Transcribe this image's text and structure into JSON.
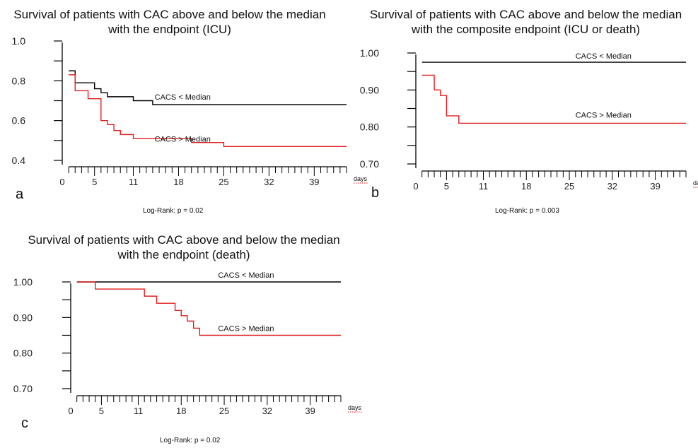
{
  "chart_data": [
    {
      "id": "a",
      "type": "line",
      "title_line1": "Survival of patients with CAC above and below the median",
      "title_line2": "with the endpoint (ICU)",
      "panel_letter": "a",
      "stat": "Log-Rank: p = 0.02",
      "xlabel": "days",
      "ylabel": "",
      "xlim": [
        0,
        44
      ],
      "ylim": [
        0.4,
        1.0
      ],
      "xticks": [
        "0",
        "5",
        "11",
        "18",
        "25",
        "32",
        "39"
      ],
      "xtick_values": [
        0,
        5,
        11,
        18,
        25,
        32,
        39
      ],
      "yticks": [
        "0.4",
        "0.6",
        "0.8",
        "1.0"
      ],
      "ytick_values": [
        0.4,
        0.6,
        0.8,
        1.0
      ],
      "grid": false,
      "series": [
        {
          "name": "CACS < Median",
          "color": "#000000",
          "x": [
            1,
            2,
            4,
            5,
            6,
            7,
            10,
            11,
            14,
            44
          ],
          "y": [
            0.85,
            0.79,
            0.79,
            0.76,
            0.74,
            0.72,
            0.72,
            0.7,
            0.68,
            0.68
          ]
        },
        {
          "name": "CACS > Median",
          "color": "#e02020",
          "x": [
            1,
            2,
            3,
            4,
            6,
            7,
            8,
            9,
            11,
            20,
            25,
            44
          ],
          "y": [
            0.83,
            0.75,
            0.75,
            0.71,
            0.6,
            0.58,
            0.55,
            0.53,
            0.51,
            0.49,
            0.47,
            0.47
          ]
        }
      ]
    },
    {
      "id": "b",
      "type": "line",
      "title_line1": "Survival of patients with CAC above and below the median",
      "title_line2": "with the composite endpoint (ICU or death)",
      "panel_letter": "b",
      "stat": "Log-Rank: p = 0.003",
      "xlabel": "days",
      "ylabel": "",
      "xlim": [
        0,
        44
      ],
      "ylim": [
        0.7,
        1.0
      ],
      "xticks": [
        "0",
        "5",
        "11",
        "18",
        "25",
        "32",
        "39"
      ],
      "xtick_values": [
        0,
        5,
        11,
        18,
        25,
        32,
        39
      ],
      "yticks": [
        "0.70",
        "0.80",
        "0.90",
        "1.00"
      ],
      "ytick_values": [
        0.7,
        0.8,
        0.9,
        1.0
      ],
      "grid": false,
      "series": [
        {
          "name": "CACS < Median",
          "color": "#000000",
          "x": [
            1,
            44
          ],
          "y": [
            0.975,
            0.975
          ]
        },
        {
          "name": "CACS > Median",
          "color": "#e02020",
          "x": [
            1,
            2,
            3,
            4,
            5,
            7,
            44
          ],
          "y": [
            0.94,
            0.94,
            0.9,
            0.885,
            0.83,
            0.81,
            0.81
          ]
        }
      ]
    },
    {
      "id": "c",
      "type": "line",
      "title_line1": "Survival of patients with CAC above and below the median",
      "title_line2": "with the endpoint (death)",
      "panel_letter": "c",
      "stat": "Log-Rank: p = 0.02",
      "xlabel": "days",
      "ylabel": "",
      "xlim": [
        0,
        44
      ],
      "ylim": [
        0.7,
        1.0
      ],
      "xticks": [
        "0",
        "5",
        "11",
        "18",
        "25",
        "32",
        "39"
      ],
      "xtick_values": [
        0,
        5,
        11,
        18,
        25,
        32,
        39
      ],
      "yticks": [
        "0.70",
        "0.80",
        "0.90",
        "1.00"
      ],
      "ytick_values": [
        0.7,
        0.8,
        0.9,
        1.0
      ],
      "grid": false,
      "series": [
        {
          "name": "CACS < Median",
          "color": "#000000",
          "x": [
            1,
            44
          ],
          "y": [
            1.0,
            1.0
          ]
        },
        {
          "name": "CACS > Median",
          "color": "#e02020",
          "x": [
            1,
            4,
            12,
            13,
            14,
            16,
            17,
            18,
            19,
            20,
            21,
            44
          ],
          "y": [
            1.0,
            0.98,
            0.96,
            0.96,
            0.94,
            0.94,
            0.92,
            0.905,
            0.89,
            0.87,
            0.85,
            0.85
          ]
        }
      ]
    }
  ]
}
